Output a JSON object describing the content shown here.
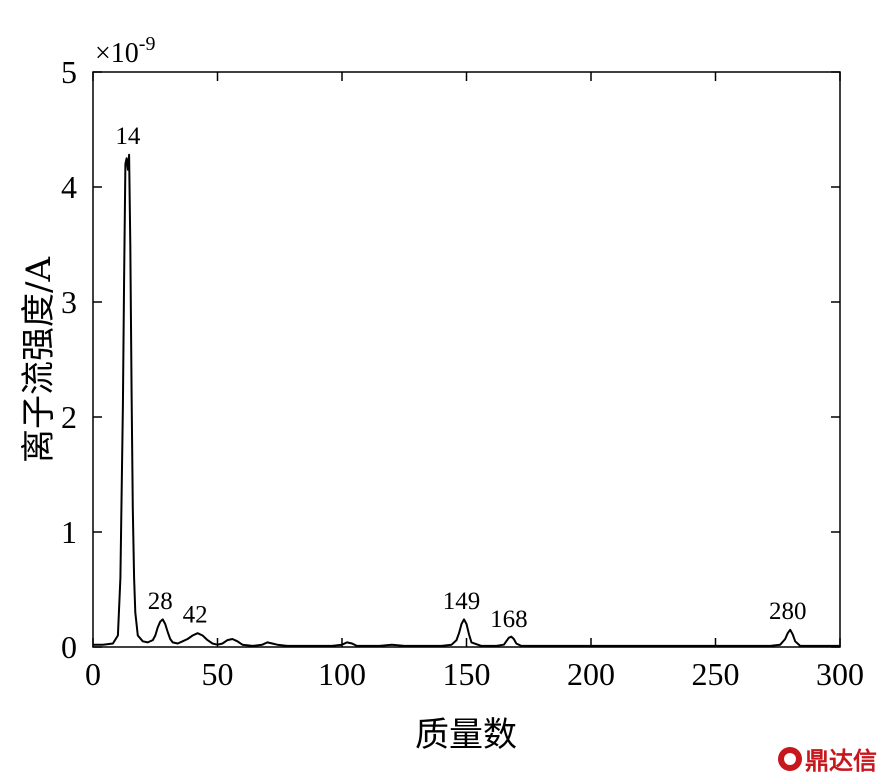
{
  "chart_data": {
    "type": "line",
    "xlabel": "质量数",
    "ylabel": "离子流强度/A",
    "y_multiplier": "×10",
    "y_multiplier_exp": "-9",
    "xlim": [
      0,
      300
    ],
    "ylim": [
      0,
      5
    ],
    "x_ticks": [
      "0",
      "50",
      "100",
      "150",
      "200",
      "250",
      "300"
    ],
    "y_ticks": [
      "0",
      "1",
      "2",
      "3",
      "4",
      "5"
    ],
    "grid": false,
    "series": [
      {
        "x": [
          0,
          4,
          8,
          10,
          11,
          12,
          12.5,
          13,
          13.5,
          14,
          14.5,
          15,
          15.5,
          16,
          16.5,
          17,
          18,
          20,
          22,
          24,
          25,
          26,
          27,
          28,
          29,
          30,
          31,
          32,
          34,
          36,
          38,
          40,
          42,
          44,
          46,
          48,
          50,
          52,
          54,
          56,
          58,
          60,
          64,
          68,
          70,
          72,
          74,
          78,
          84,
          90,
          96,
          100,
          102,
          104,
          106,
          110,
          115,
          120,
          125,
          130,
          136,
          140,
          144,
          146,
          147,
          148,
          149,
          150,
          151,
          152,
          156,
          162,
          165,
          166,
          167,
          168,
          169,
          170,
          172,
          180,
          200,
          220,
          240,
          260,
          272,
          276,
          278,
          279,
          280,
          281,
          282,
          284,
          290,
          300
        ],
        "y": [
          0.02,
          0.02,
          0.03,
          0.1,
          0.6,
          2.1,
          3.2,
          4.2,
          4.25,
          4.15,
          4.28,
          3.5,
          2.2,
          1.2,
          0.6,
          0.3,
          0.1,
          0.05,
          0.04,
          0.06,
          0.1,
          0.17,
          0.22,
          0.24,
          0.2,
          0.13,
          0.07,
          0.04,
          0.03,
          0.05,
          0.07,
          0.1,
          0.12,
          0.1,
          0.06,
          0.03,
          0.02,
          0.03,
          0.06,
          0.07,
          0.05,
          0.02,
          0.01,
          0.02,
          0.04,
          0.03,
          0.02,
          0.01,
          0.01,
          0.01,
          0.01,
          0.02,
          0.04,
          0.03,
          0.01,
          0.01,
          0.01,
          0.02,
          0.01,
          0.01,
          0.01,
          0.01,
          0.02,
          0.06,
          0.12,
          0.2,
          0.24,
          0.2,
          0.11,
          0.04,
          0.01,
          0.01,
          0.02,
          0.05,
          0.08,
          0.09,
          0.07,
          0.03,
          0.01,
          0.01,
          0.01,
          0.01,
          0.01,
          0.01,
          0.01,
          0.02,
          0.07,
          0.12,
          0.15,
          0.11,
          0.05,
          0.01,
          0.01,
          0.01
        ]
      }
    ],
    "annotations": [
      {
        "text": "14",
        "x": 14,
        "y": 4.32
      },
      {
        "text": "28",
        "x": 27,
        "y": 0.28
      },
      {
        "text": "42",
        "x": 41,
        "y": 0.16
      },
      {
        "text": "149",
        "x": 148,
        "y": 0.28
      },
      {
        "text": "168",
        "x": 167,
        "y": 0.12
      },
      {
        "text": "280",
        "x": 279,
        "y": 0.19
      }
    ]
  },
  "watermark": {
    "text": "鼎达信"
  }
}
